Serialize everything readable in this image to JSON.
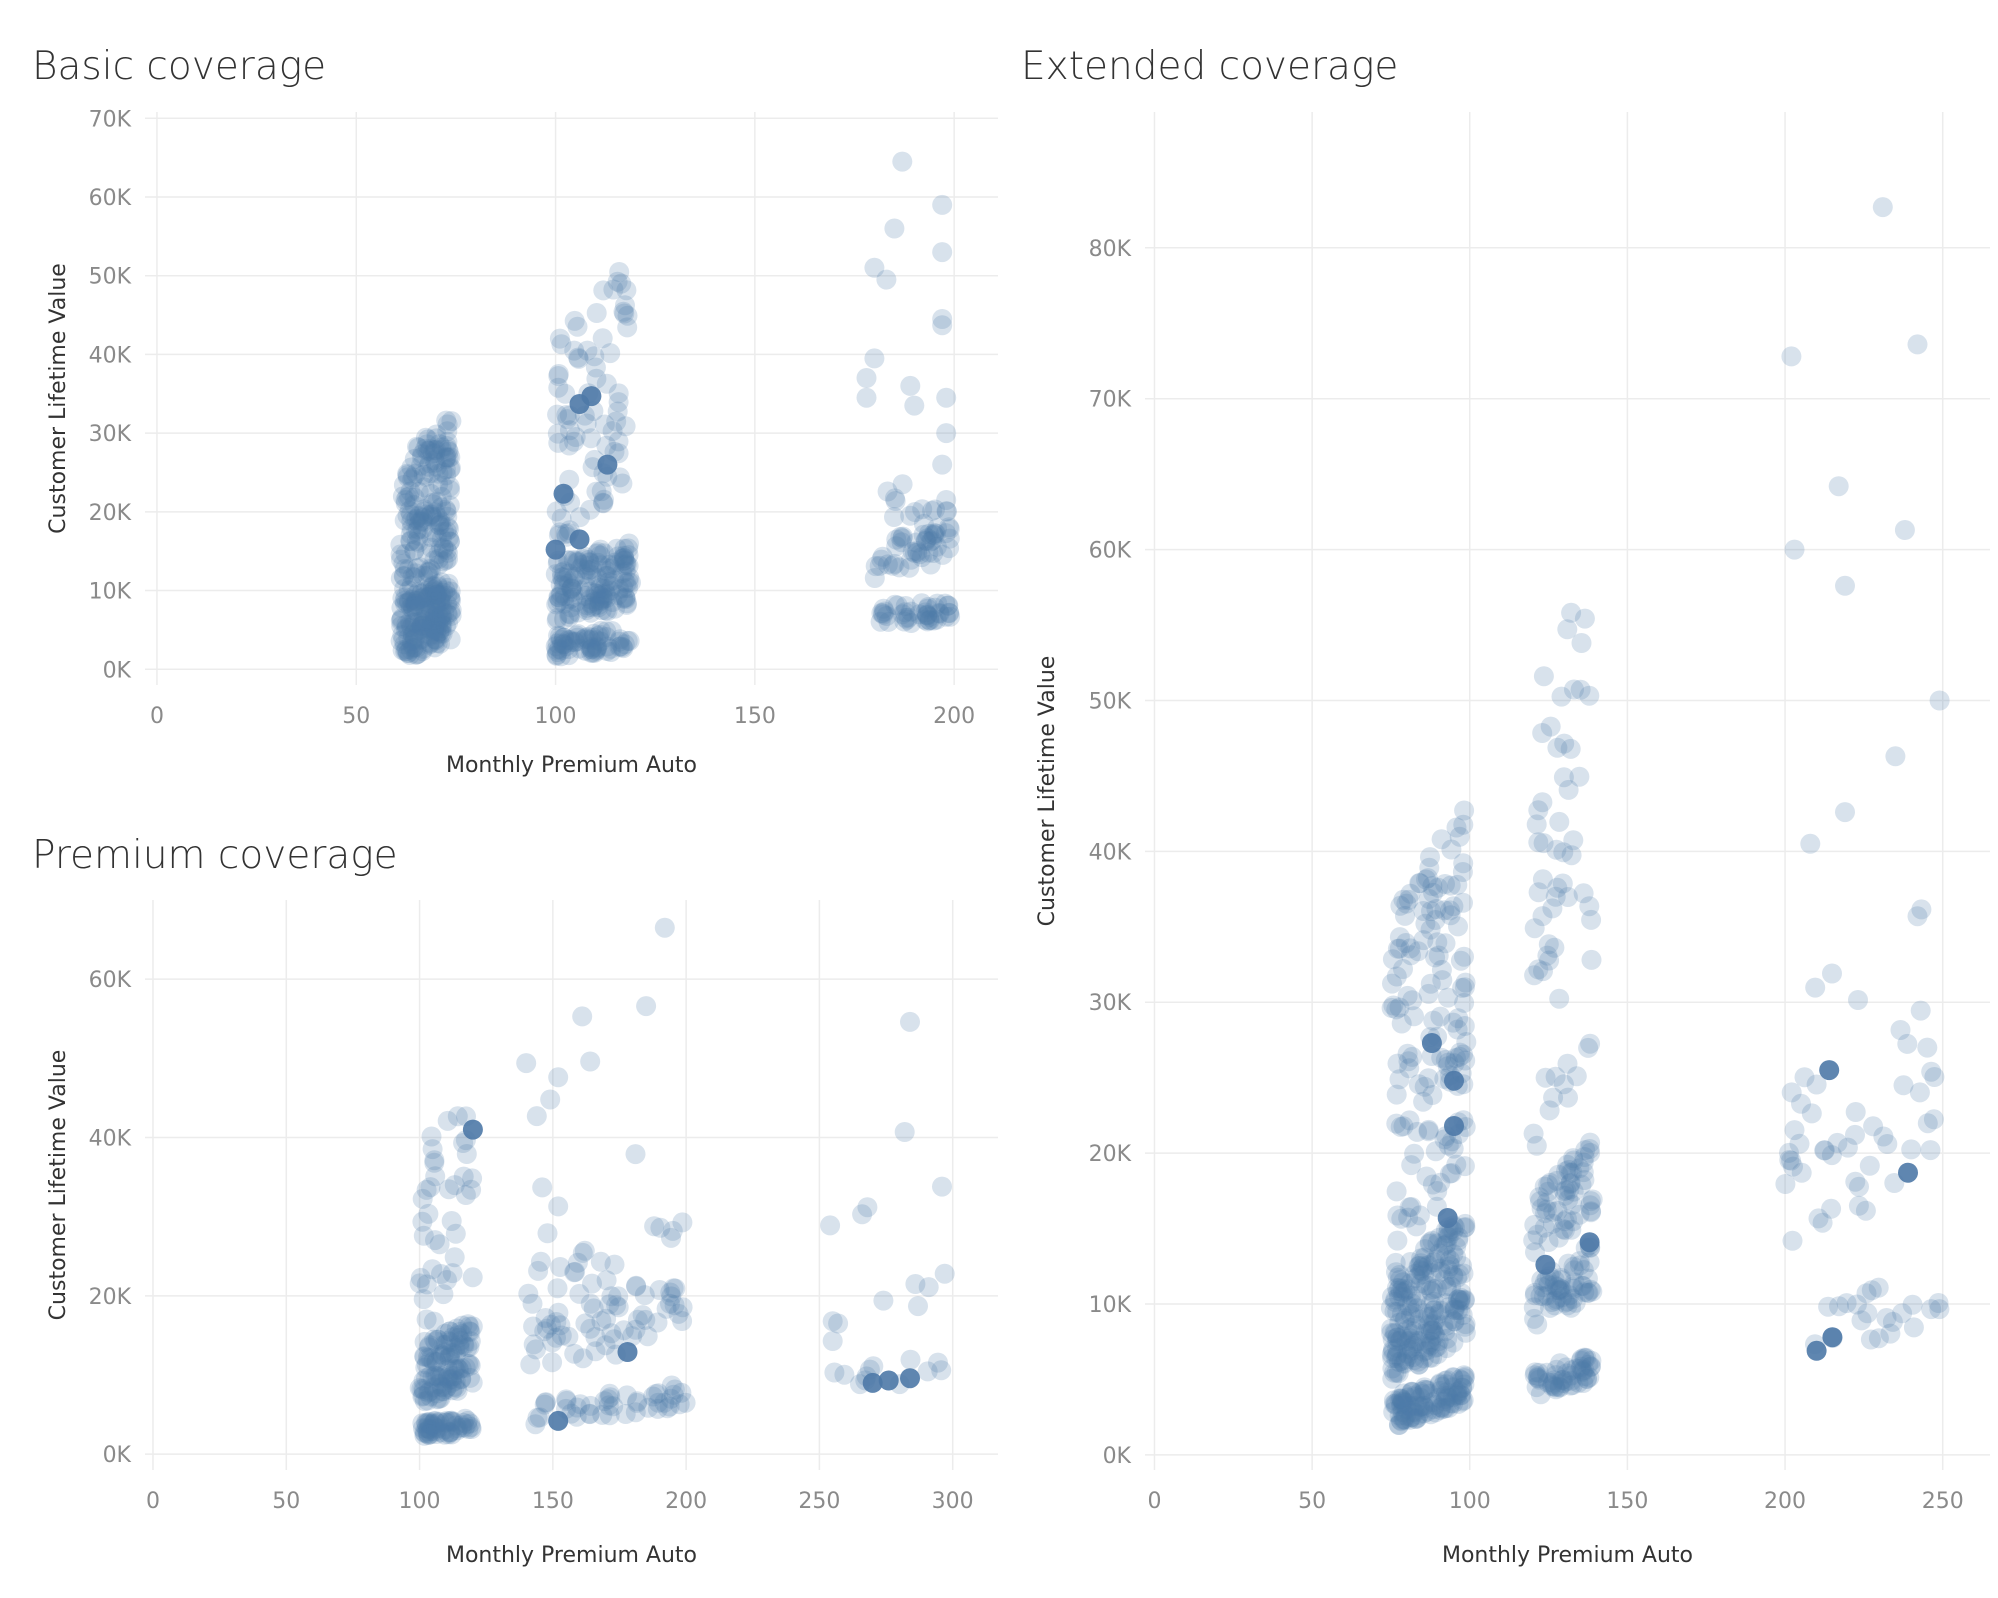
{
  "chart_data": [
    {
      "type": "scatter",
      "title": "Basic coverage",
      "xlabel": "Monthly Premium Auto",
      "ylabel": "Customer Lifetime Value",
      "xlim": [
        -3,
        211
      ],
      "ylim": [
        -2000,
        70800
      ],
      "x_ticks": [
        0,
        50,
        100,
        150,
        200
      ],
      "x_tick_labels": [
        "0",
        "50",
        "100",
        "150",
        "200"
      ],
      "y_ticks": [
        0,
        10000,
        20000,
        30000,
        40000,
        50000,
        60000,
        70000
      ],
      "y_tick_labels": [
        "0K",
        "10K",
        "20K",
        "30K",
        "40K",
        "50K",
        "60K",
        "70K"
      ],
      "grid": true,
      "marker_color": "#4e79a7",
      "clusters": [
        {
          "x_range": [
            61,
            74
          ],
          "bands": [
            {
              "y": [
                1000,
                9000
              ],
              "n": 180,
              "slope": 200
            },
            {
              "y": [
                9000,
                27000
              ],
              "n": 170,
              "slope": 400
            }
          ]
        },
        {
          "x_range": [
            100,
            119
          ],
          "bands": [
            {
              "y": [
                1500,
                4500
              ],
              "n": 70,
              "slope": 50
            },
            {
              "y": [
                6000,
                10000
              ],
              "n": 80,
              "slope": 100
            },
            {
              "y": [
                10000,
                14000
              ],
              "n": 70,
              "slope": 120
            },
            {
              "y": [
                15000,
                43000
              ],
              "n": 80,
              "slope": 500
            }
          ]
        },
        {
          "x_range": [
            180,
            199
          ],
          "bands": [
            {
              "y": [
                5500,
                8000
              ],
              "n": 45,
              "slope": 40
            },
            {
              "y": [
                11500,
                16500
              ],
              "n": 45,
              "slope": 120
            },
            {
              "y": [
                18000,
                24000
              ],
              "n": 14,
              "slope": 0
            }
          ]
        }
      ],
      "points": [
        {
          "x": 187,
          "y": 64500
        },
        {
          "x": 197,
          "y": 59000
        },
        {
          "x": 185,
          "y": 56000
        },
        {
          "x": 197,
          "y": 53000
        },
        {
          "x": 180,
          "y": 51000
        },
        {
          "x": 183,
          "y": 49500
        },
        {
          "x": 197,
          "y": 44500
        },
        {
          "x": 197,
          "y": 43700
        },
        {
          "x": 180,
          "y": 39500
        },
        {
          "x": 178,
          "y": 37000
        },
        {
          "x": 189,
          "y": 36000
        },
        {
          "x": 178,
          "y": 34500
        },
        {
          "x": 198,
          "y": 34500
        },
        {
          "x": 190,
          "y": 33500
        },
        {
          "x": 198,
          "y": 30000
        },
        {
          "x": 197,
          "y": 26000
        },
        {
          "x": 198,
          "y": 21500
        }
      ],
      "highlight": [
        {
          "x": 100,
          "y": 15200
        },
        {
          "x": 102,
          "y": 22300
        },
        {
          "x": 106,
          "y": 16500
        },
        {
          "x": 113,
          "y": 26000
        },
        {
          "x": 109,
          "y": 34700
        },
        {
          "x": 106,
          "y": 33700
        }
      ]
    },
    {
      "type": "scatter",
      "title": "Extended coverage",
      "xlabel": "Monthly Premium Auto",
      "ylabel": "Customer Lifetime Value",
      "xlim": [
        -3,
        265
      ],
      "ylim": [
        -1000,
        89000
      ],
      "x_ticks": [
        0,
        50,
        100,
        150,
        200,
        250
      ],
      "x_tick_labels": [
        "0",
        "50",
        "100",
        "150",
        "200",
        "250"
      ],
      "y_ticks": [
        0,
        10000,
        20000,
        30000,
        40000,
        50000,
        60000,
        70000,
        80000
      ],
      "y_tick_labels": [
        "0K",
        "10K",
        "20K",
        "30K",
        "40K",
        "50K",
        "60K",
        "70K",
        "80K"
      ],
      "grid": true,
      "marker_color": "#4e79a7",
      "clusters": [
        {
          "x_range": [
            75,
            99
          ],
          "bands": [
            {
              "y": [
                1800,
                3800
              ],
              "n": 110,
              "slope": 70
            },
            {
              "y": [
                4700,
                8000
              ],
              "n": 110,
              "slope": 130
            },
            {
              "y": [
                7800,
                12000
              ],
              "n": 110,
              "slope": 170
            },
            {
              "y": [
                12000,
                36000
              ],
              "n": 150,
              "slope": 300
            }
          ]
        },
        {
          "x_range": [
            120,
            139
          ],
          "bands": [
            {
              "y": [
                3700,
                5600
              ],
              "n": 55,
              "slope": 60
            },
            {
              "y": [
                8000,
                11500
              ],
              "n": 60,
              "slope": 140
            },
            {
              "y": [
                12000,
                17000
              ],
              "n": 60,
              "slope": 220
            },
            {
              "y": [
                18000,
                50000
              ],
              "n": 60,
              "slope": 500
            }
          ]
        },
        {
          "x_range": [
            200,
            250
          ],
          "bands": [
            {
              "y": [
                6500,
                10000
              ],
              "n": 22,
              "slope": 40
            },
            {
              "y": [
                13000,
                20500
              ],
              "n": 35,
              "slope": 120
            },
            {
              "y": [
                21000,
                31000
              ],
              "n": 14,
              "slope": 120
            }
          ]
        }
      ],
      "points": [
        {
          "x": 231,
          "y": 82700
        },
        {
          "x": 242,
          "y": 73600
        },
        {
          "x": 202,
          "y": 72800
        },
        {
          "x": 217,
          "y": 64200
        },
        {
          "x": 203,
          "y": 60000
        },
        {
          "x": 238,
          "y": 61300
        },
        {
          "x": 219,
          "y": 57600
        },
        {
          "x": 249,
          "y": 50000
        },
        {
          "x": 235,
          "y": 46300
        },
        {
          "x": 219,
          "y": 42600
        },
        {
          "x": 208,
          "y": 40500
        },
        {
          "x": 242,
          "y": 35700
        }
      ],
      "highlight": [
        {
          "x": 88,
          "y": 27300
        },
        {
          "x": 95,
          "y": 24800
        },
        {
          "x": 95,
          "y": 21800
        },
        {
          "x": 93,
          "y": 15700
        },
        {
          "x": 124,
          "y": 12600
        },
        {
          "x": 138,
          "y": 14100
        },
        {
          "x": 214,
          "y": 25500
        },
        {
          "x": 239,
          "y": 18700
        },
        {
          "x": 215,
          "y": 7800
        },
        {
          "x": 210,
          "y": 6900
        }
      ]
    },
    {
      "type": "scatter",
      "title": "Premium coverage",
      "xlabel": "Monthly Premium Auto",
      "ylabel": "Customer Lifetime Value",
      "xlim": [
        -3,
        317
      ],
      "ylim": [
        -2000,
        70000
      ],
      "x_ticks": [
        0,
        50,
        100,
        150,
        200,
        250,
        300
      ],
      "x_tick_labels": [
        "0",
        "50",
        "100",
        "150",
        "200",
        "250",
        "300"
      ],
      "y_ticks": [
        0,
        20000,
        40000,
        60000
      ],
      "y_tick_labels": [
        "0K",
        "20K",
        "40K",
        "60K"
      ],
      "grid": true,
      "marker_color": "#4e79a7",
      "clusters": [
        {
          "x_range": [
            100,
            120
          ],
          "bands": [
            {
              "y": [
                2000,
                4000
              ],
              "n": 60,
              "slope": 40
            },
            {
              "y": [
                6000,
                9500
              ],
              "n": 60,
              "slope": 120
            },
            {
              "y": [
                10500,
                14000
              ],
              "n": 55,
              "slope": 140
            },
            {
              "y": [
                15000,
                39000
              ],
              "n": 40,
              "slope": 300
            }
          ]
        },
        {
          "x_range": [
            140,
            200
          ],
          "bands": [
            {
              "y": [
                3500,
                6500
              ],
              "n": 45,
              "slope": 40
            },
            {
              "y": [
                9000,
                16000
              ],
              "n": 45,
              "slope": 100
            },
            {
              "y": [
                15000,
                24000
              ],
              "n": 30,
              "slope": 100
            }
          ]
        },
        {
          "x_range": [
            252,
            298
          ],
          "bands": [
            {
              "y": [
                8000,
                11500
              ],
              "n": 12,
              "slope": 30
            }
          ]
        }
      ],
      "points": [
        {
          "x": 192,
          "y": 66500
        },
        {
          "x": 185,
          "y": 56600
        },
        {
          "x": 161,
          "y": 55300
        },
        {
          "x": 284,
          "y": 54600
        },
        {
          "x": 164,
          "y": 49600
        },
        {
          "x": 140,
          "y": 49400
        },
        {
          "x": 152,
          "y": 47600
        },
        {
          "x": 149,
          "y": 44800
        },
        {
          "x": 144,
          "y": 42700
        },
        {
          "x": 282,
          "y": 40700
        },
        {
          "x": 181,
          "y": 37900
        },
        {
          "x": 146,
          "y": 33700
        },
        {
          "x": 152,
          "y": 31300
        },
        {
          "x": 268,
          "y": 31200
        },
        {
          "x": 266,
          "y": 30300
        },
        {
          "x": 254,
          "y": 28900
        },
        {
          "x": 148,
          "y": 27900
        },
        {
          "x": 188,
          "y": 28800
        },
        {
          "x": 195,
          "y": 28200
        },
        {
          "x": 168,
          "y": 24300
        },
        {
          "x": 296,
          "y": 33800
        },
        {
          "x": 297,
          "y": 22800
        },
        {
          "x": 286,
          "y": 21500
        },
        {
          "x": 291,
          "y": 21100
        },
        {
          "x": 274,
          "y": 19400
        },
        {
          "x": 287,
          "y": 18700
        },
        {
          "x": 255,
          "y": 16800
        },
        {
          "x": 257,
          "y": 16500
        },
        {
          "x": 255,
          "y": 14300
        }
      ],
      "highlight": [
        {
          "x": 120,
          "y": 41000
        },
        {
          "x": 152,
          "y": 4200
        },
        {
          "x": 178,
          "y": 12900
        },
        {
          "x": 270,
          "y": 9000
        },
        {
          "x": 276,
          "y": 9300
        },
        {
          "x": 284,
          "y": 9600
        }
      ]
    }
  ]
}
